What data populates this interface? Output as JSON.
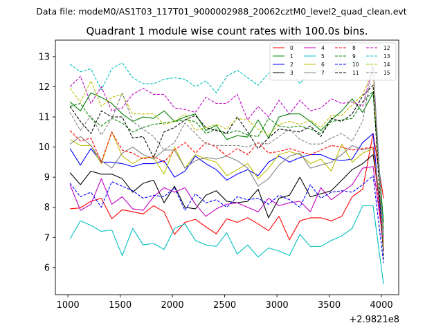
{
  "chart_data": {
    "type": "line",
    "suptitle": "Data file: modeM0/AS1T03_117T01_9000002988_20062cztM0_level2_quad_clean.evt",
    "title": "Quadrant 1 module wise count rates with 100.0s bins.",
    "x_offset_label": "+2.9821e8",
    "xlabel": "",
    "ylabel": "",
    "xlim": [
      880,
      4165
    ],
    "ylim": [
      5.1,
      13.55
    ],
    "xticks": [
      1000,
      1500,
      2000,
      2500,
      3000,
      3500,
      4000
    ],
    "yticks": [
      6,
      7,
      8,
      9,
      10,
      11,
      12,
      13
    ],
    "x": [
      1020,
      1120,
      1220,
      1320,
      1420,
      1520,
      1620,
      1720,
      1820,
      1920,
      2020,
      2120,
      2220,
      2320,
      2420,
      2520,
      2620,
      2720,
      2820,
      2920,
      3020,
      3120,
      3220,
      3320,
      3420,
      3520,
      3620,
      3720,
      3820,
      3920,
      4020
    ],
    "series": [
      {
        "name": "0",
        "color": "#ff0000",
        "dash": "solid",
        "values": [
          7.95,
          7.98,
          8.2,
          8.3,
          7.62,
          7.92,
          7.85,
          7.78,
          8.05,
          7.85,
          7.1,
          7.5,
          7.6,
          7.35,
          7.12,
          7.62,
          7.5,
          7.65,
          7.45,
          7.22,
          7.7,
          6.92,
          7.55,
          7.65,
          7.65,
          7.55,
          7.7,
          8.35,
          8.6,
          10.45,
          8.3
        ]
      },
      {
        "name": "1",
        "color": "#008000",
        "dash": "solid",
        "values": [
          11.5,
          11.2,
          11.8,
          11.65,
          11.45,
          11.1,
          10.85,
          11.0,
          10.95,
          11.2,
          10.85,
          11.0,
          11.1,
          10.55,
          10.72,
          10.25,
          10.38,
          10.33,
          10.9,
          10.3,
          11.0,
          11.1,
          11.1,
          10.85,
          10.55,
          10.9,
          11.2,
          11.6,
          11.15,
          11.8,
          7.5
        ]
      },
      {
        "name": "2",
        "color": "#0000ff",
        "dash": "solid",
        "values": [
          9.95,
          9.4,
          9.95,
          9.5,
          9.5,
          9.45,
          9.35,
          9.45,
          9.45,
          9.55,
          9.0,
          9.2,
          9.7,
          9.45,
          9.25,
          8.9,
          9.1,
          9.25,
          9.05,
          9.5,
          9.7,
          9.5,
          9.65,
          9.75,
          9.75,
          9.6,
          9.55,
          9.6,
          10.15,
          10.45,
          6.6
        ]
      },
      {
        "name": "3",
        "color": "#000000",
        "dash": "solid",
        "values": [
          9.15,
          8.75,
          9.2,
          9.1,
          9.1,
          8.95,
          8.5,
          8.8,
          8.9,
          8.15,
          8.7,
          8.0,
          7.95,
          8.4,
          8.55,
          8.2,
          8.15,
          8.2,
          8.6,
          7.65,
          8.3,
          8.4,
          9.0,
          8.35,
          8.45,
          8.55,
          8.9,
          9.25,
          9.45,
          9.75,
          7.3
        ]
      },
      {
        "name": "4",
        "color": "#bf00bf",
        "dash": "solid",
        "values": [
          8.75,
          7.9,
          8.1,
          8.95,
          8.1,
          8.35,
          7.95,
          7.9,
          8.35,
          8.65,
          8.5,
          8.65,
          8.1,
          7.7,
          7.95,
          8.1,
          8.15,
          8.0,
          7.85,
          8.3,
          8.05,
          8.15,
          8.2,
          7.85,
          8.65,
          8.25,
          8.5,
          8.75,
          9.3,
          9.35,
          6.8
        ]
      },
      {
        "name": "5",
        "color": "#00bfbf",
        "dash": "solid",
        "values": [
          6.95,
          7.55,
          7.4,
          7.2,
          7.25,
          6.4,
          7.3,
          6.75,
          6.8,
          6.6,
          7.3,
          7.45,
          6.9,
          6.75,
          6.7,
          7.15,
          6.45,
          6.75,
          6.35,
          6.65,
          6.55,
          6.4,
          7.1,
          6.7,
          6.7,
          6.9,
          7.05,
          7.3,
          8.05,
          8.05,
          5.45
        ]
      },
      {
        "name": "6",
        "color": "#bfbf00",
        "dash": "solid",
        "values": [
          10.25,
          10.05,
          10.05,
          9.45,
          10.5,
          9.7,
          9.45,
          9.65,
          9.65,
          9.1,
          10.0,
          9.3,
          9.75,
          9.6,
          9.5,
          9.05,
          9.25,
          9.45,
          8.95,
          9.3,
          9.75,
          9.85,
          9.75,
          9.45,
          9.6,
          9.2,
          10.1,
          9.5,
          9.8,
          9.95,
          7.35
        ]
      },
      {
        "name": "7",
        "color": "#808080",
        "dash": "solid",
        "values": [
          10.1,
          10.35,
          10.05,
          9.55,
          9.3,
          9.8,
          10.0,
          9.75,
          9.6,
          9.9,
          9.9,
          9.3,
          9.55,
          9.65,
          9.6,
          9.7,
          9.55,
          9.3,
          8.7,
          8.95,
          9.4,
          9.7,
          9.8,
          9.3,
          9.4,
          9.5,
          9.75,
          10.05,
          9.9,
          10.0,
          7.25
        ]
      },
      {
        "name": "8",
        "color": "#ff0000",
        "dash": "dashed",
        "values": [
          10.55,
          10.2,
          10.3,
          9.5,
          10.5,
          9.9,
          9.8,
          9.6,
          9.7,
          9.5,
          9.9,
          10.15,
          9.8,
          10.15,
          10.0,
          9.7,
          9.95,
          9.75,
          10.15,
          9.8,
          9.85,
          9.95,
          9.85,
          9.75,
          9.9,
          10.05,
          10.0,
          9.9,
          9.95,
          10.0,
          6.55
        ]
      },
      {
        "name": "9",
        "color": "#008000",
        "dash": "dashed",
        "values": [
          11.35,
          11.45,
          10.95,
          10.7,
          10.95,
          10.8,
          10.5,
          10.65,
          10.75,
          10.8,
          10.85,
          10.9,
          10.85,
          10.45,
          10.6,
          10.45,
          10.55,
          10.4,
          10.35,
          10.95,
          10.7,
          10.65,
          10.7,
          10.6,
          10.45,
          10.85,
          10.9,
          10.95,
          11.5,
          11.85,
          6.85
        ]
      },
      {
        "name": "10",
        "color": "#0000ff",
        "dash": "dashed",
        "values": [
          8.8,
          8.35,
          8.5,
          8.0,
          8.85,
          8.7,
          8.55,
          8.3,
          8.4,
          8.35,
          8.65,
          7.9,
          8.45,
          8.15,
          8.25,
          8.0,
          8.35,
          8.25,
          8.3,
          8.1,
          8.4,
          8.25,
          8.0,
          8.75,
          8.3,
          8.5,
          8.55,
          8.5,
          8.75,
          9.05,
          6.15
        ]
      },
      {
        "name": "11",
        "color": "#000000",
        "dash": "dashed",
        "values": [
          11.35,
          10.85,
          10.45,
          11.2,
          11.0,
          11.0,
          10.3,
          10.35,
          9.65,
          10.5,
          10.65,
          10.9,
          11.05,
          10.65,
          10.55,
          10.45,
          11.0,
          10.5,
          9.95,
          10.3,
          10.6,
          10.55,
          10.5,
          10.7,
          10.35,
          10.95,
          10.85,
          11.1,
          11.7,
          12.05,
          6.3
        ]
      },
      {
        "name": "12",
        "color": "#bf00bf",
        "dash": "dashed",
        "values": [
          12.0,
          12.35,
          11.45,
          12.0,
          11.2,
          11.3,
          11.75,
          11.95,
          11.75,
          11.75,
          11.3,
          11.25,
          11.15,
          11.65,
          11.45,
          11.45,
          11.75,
          10.9,
          11.35,
          11.0,
          11.55,
          11.1,
          11.55,
          11.2,
          11.3,
          11.6,
          11.45,
          11.5,
          11.35,
          12.7,
          6.95
        ]
      },
      {
        "name": "13",
        "color": "#00bfbf",
        "dash": "dashed",
        "values": [
          12.75,
          12.5,
          12.6,
          11.9,
          12.6,
          12.8,
          12.3,
          12.1,
          12.1,
          12.25,
          12.3,
          12.25,
          12.0,
          12.2,
          11.8,
          12.35,
          12.55,
          12.3,
          12.05,
          12.45,
          12.5,
          12.6,
          12.1,
          12.55,
          12.5,
          12.45,
          12.75,
          12.8,
          13.0,
          12.6,
          7.05
        ]
      },
      {
        "name": "14",
        "color": "#bfbf00",
        "dash": "dashed",
        "values": [
          11.95,
          11.5,
          12.2,
          11.35,
          11.65,
          11.75,
          11.1,
          11.1,
          11.1,
          10.75,
          10.85,
          11.1,
          10.55,
          10.65,
          10.75,
          10.6,
          10.95,
          10.9,
          10.6,
          10.4,
          10.75,
          10.85,
          10.75,
          10.9,
          10.65,
          11.05,
          11.05,
          11.4,
          11.75,
          12.5,
          6.7
        ]
      },
      {
        "name": "15",
        "color": "#808080",
        "dash": "dashed",
        "values": [
          11.15,
          10.55,
          11.05,
          10.4,
          10.95,
          11.8,
          10.85,
          10.6,
          10.35,
          9.9,
          10.15,
          10.8,
          10.45,
          10.1,
          10.05,
          10.05,
          10.05,
          10.0,
          10.15,
          10.1,
          10.35,
          10.6,
          10.25,
          10.1,
          10.1,
          10.3,
          10.45,
          10.2,
          10.85,
          12.7,
          6.5
        ]
      }
    ],
    "legend": {
      "placement": "top-right",
      "columns": 4
    }
  }
}
